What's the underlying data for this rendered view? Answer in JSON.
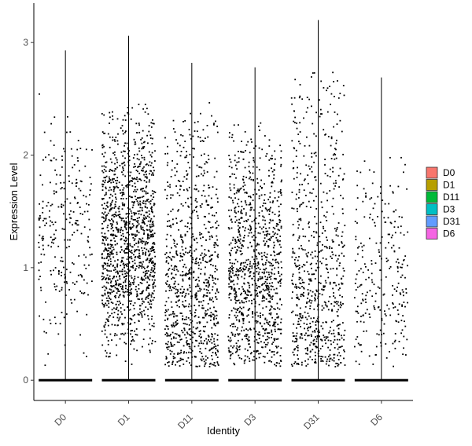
{
  "chart_data": {
    "type": "scatter",
    "subtype": "violin-jitter",
    "title": "",
    "xlabel": "Identity",
    "ylabel": "Expression Level",
    "ylim": [
      -0.18,
      3.35
    ],
    "yticks": [
      0,
      1,
      2,
      3
    ],
    "grid": false,
    "legend_position": "right",
    "categories": [
      "D0",
      "D1",
      "D11",
      "D3",
      "D31",
      "D6"
    ],
    "series": [
      {
        "name": "D0",
        "color": "#F8766D",
        "max": 2.93,
        "nonzero_points": 260,
        "spread": 1.15,
        "mode": 1.3
      },
      {
        "name": "D1",
        "color": "#B79F00",
        "max": 3.06,
        "nonzero_points": 1300,
        "spread": 1.6,
        "mode": 1.2
      },
      {
        "name": "D11",
        "color": "#00BA38",
        "max": 2.82,
        "nonzero_points": 850,
        "spread": 1.8,
        "mode": 0.6
      },
      {
        "name": "D3",
        "color": "#00BFC4",
        "max": 2.78,
        "nonzero_points": 1000,
        "spread": 1.7,
        "mode": 0.8
      },
      {
        "name": "D31",
        "color": "#619CFF",
        "max": 3.2,
        "nonzero_points": 700,
        "spread": 2.2,
        "mode": 0.6
      },
      {
        "name": "D6",
        "color": "#F564E3",
        "max": 2.69,
        "nonzero_points": 260,
        "spread": 1.15,
        "mode": 0.8
      }
    ]
  }
}
